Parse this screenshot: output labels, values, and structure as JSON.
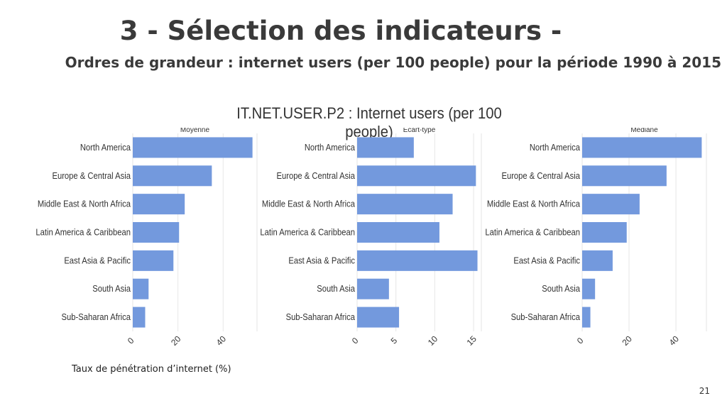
{
  "slide": {
    "title": "3 - Sélection des indicateurs -",
    "subtitle": "Ordres de grandeur : internet users (per 100 people) pour la période 1990 à 2015",
    "caption": "Taux de pénétration d’internet (%)",
    "page_number": "21"
  },
  "chart_title": "IT.NET.USER.P2 : Internet users (per 100 people)",
  "colors": {
    "bar": "#7399dd",
    "grid": "#e6e6e6",
    "text": "#333333"
  },
  "chart_data": [
    {
      "type": "bar",
      "orientation": "horizontal",
      "title": "Moyenne",
      "categories": [
        "North America",
        "Europe & Central Asia",
        "Middle East & North Africa",
        "Latin America & Caribbean",
        "East Asia & Pacific",
        "South Asia",
        "Sub-Saharan Africa"
      ],
      "values": [
        53,
        35,
        23,
        20.5,
        18,
        7,
        5.5
      ],
      "xlim": [
        0,
        55
      ],
      "xticks": [
        "0",
        "20",
        "40"
      ],
      "xtick_values": [
        0,
        20,
        40
      ],
      "grid": true
    },
    {
      "type": "bar",
      "orientation": "horizontal",
      "title": "Ecart-type",
      "categories": [
        "North America",
        "Europe & Central Asia",
        "Middle East & North Africa",
        "Latin America & Caribbean",
        "East Asia & Pacific",
        "South Asia",
        "Sub-Saharan Africa"
      ],
      "values": [
        7.3,
        15.3,
        12.3,
        10.6,
        15.5,
        4.1,
        5.4
      ],
      "xlim": [
        0,
        16
      ],
      "xticks": [
        "0",
        "5",
        "10",
        "15"
      ],
      "xtick_values": [
        0,
        5,
        10,
        15
      ],
      "grid": true
    },
    {
      "type": "bar",
      "orientation": "horizontal",
      "title": "Médiane",
      "categories": [
        "North America",
        "Europe & Central Asia",
        "Middle East & North Africa",
        "Latin America & Caribbean",
        "East Asia & Pacific",
        "South Asia",
        "Sub-Saharan Africa"
      ],
      "values": [
        51,
        36,
        24.5,
        19,
        13,
        5.5,
        3.5
      ],
      "xlim": [
        0,
        53
      ],
      "xticks": [
        "0",
        "20",
        "40"
      ],
      "xtick_values": [
        0,
        20,
        40
      ],
      "grid": true
    }
  ]
}
